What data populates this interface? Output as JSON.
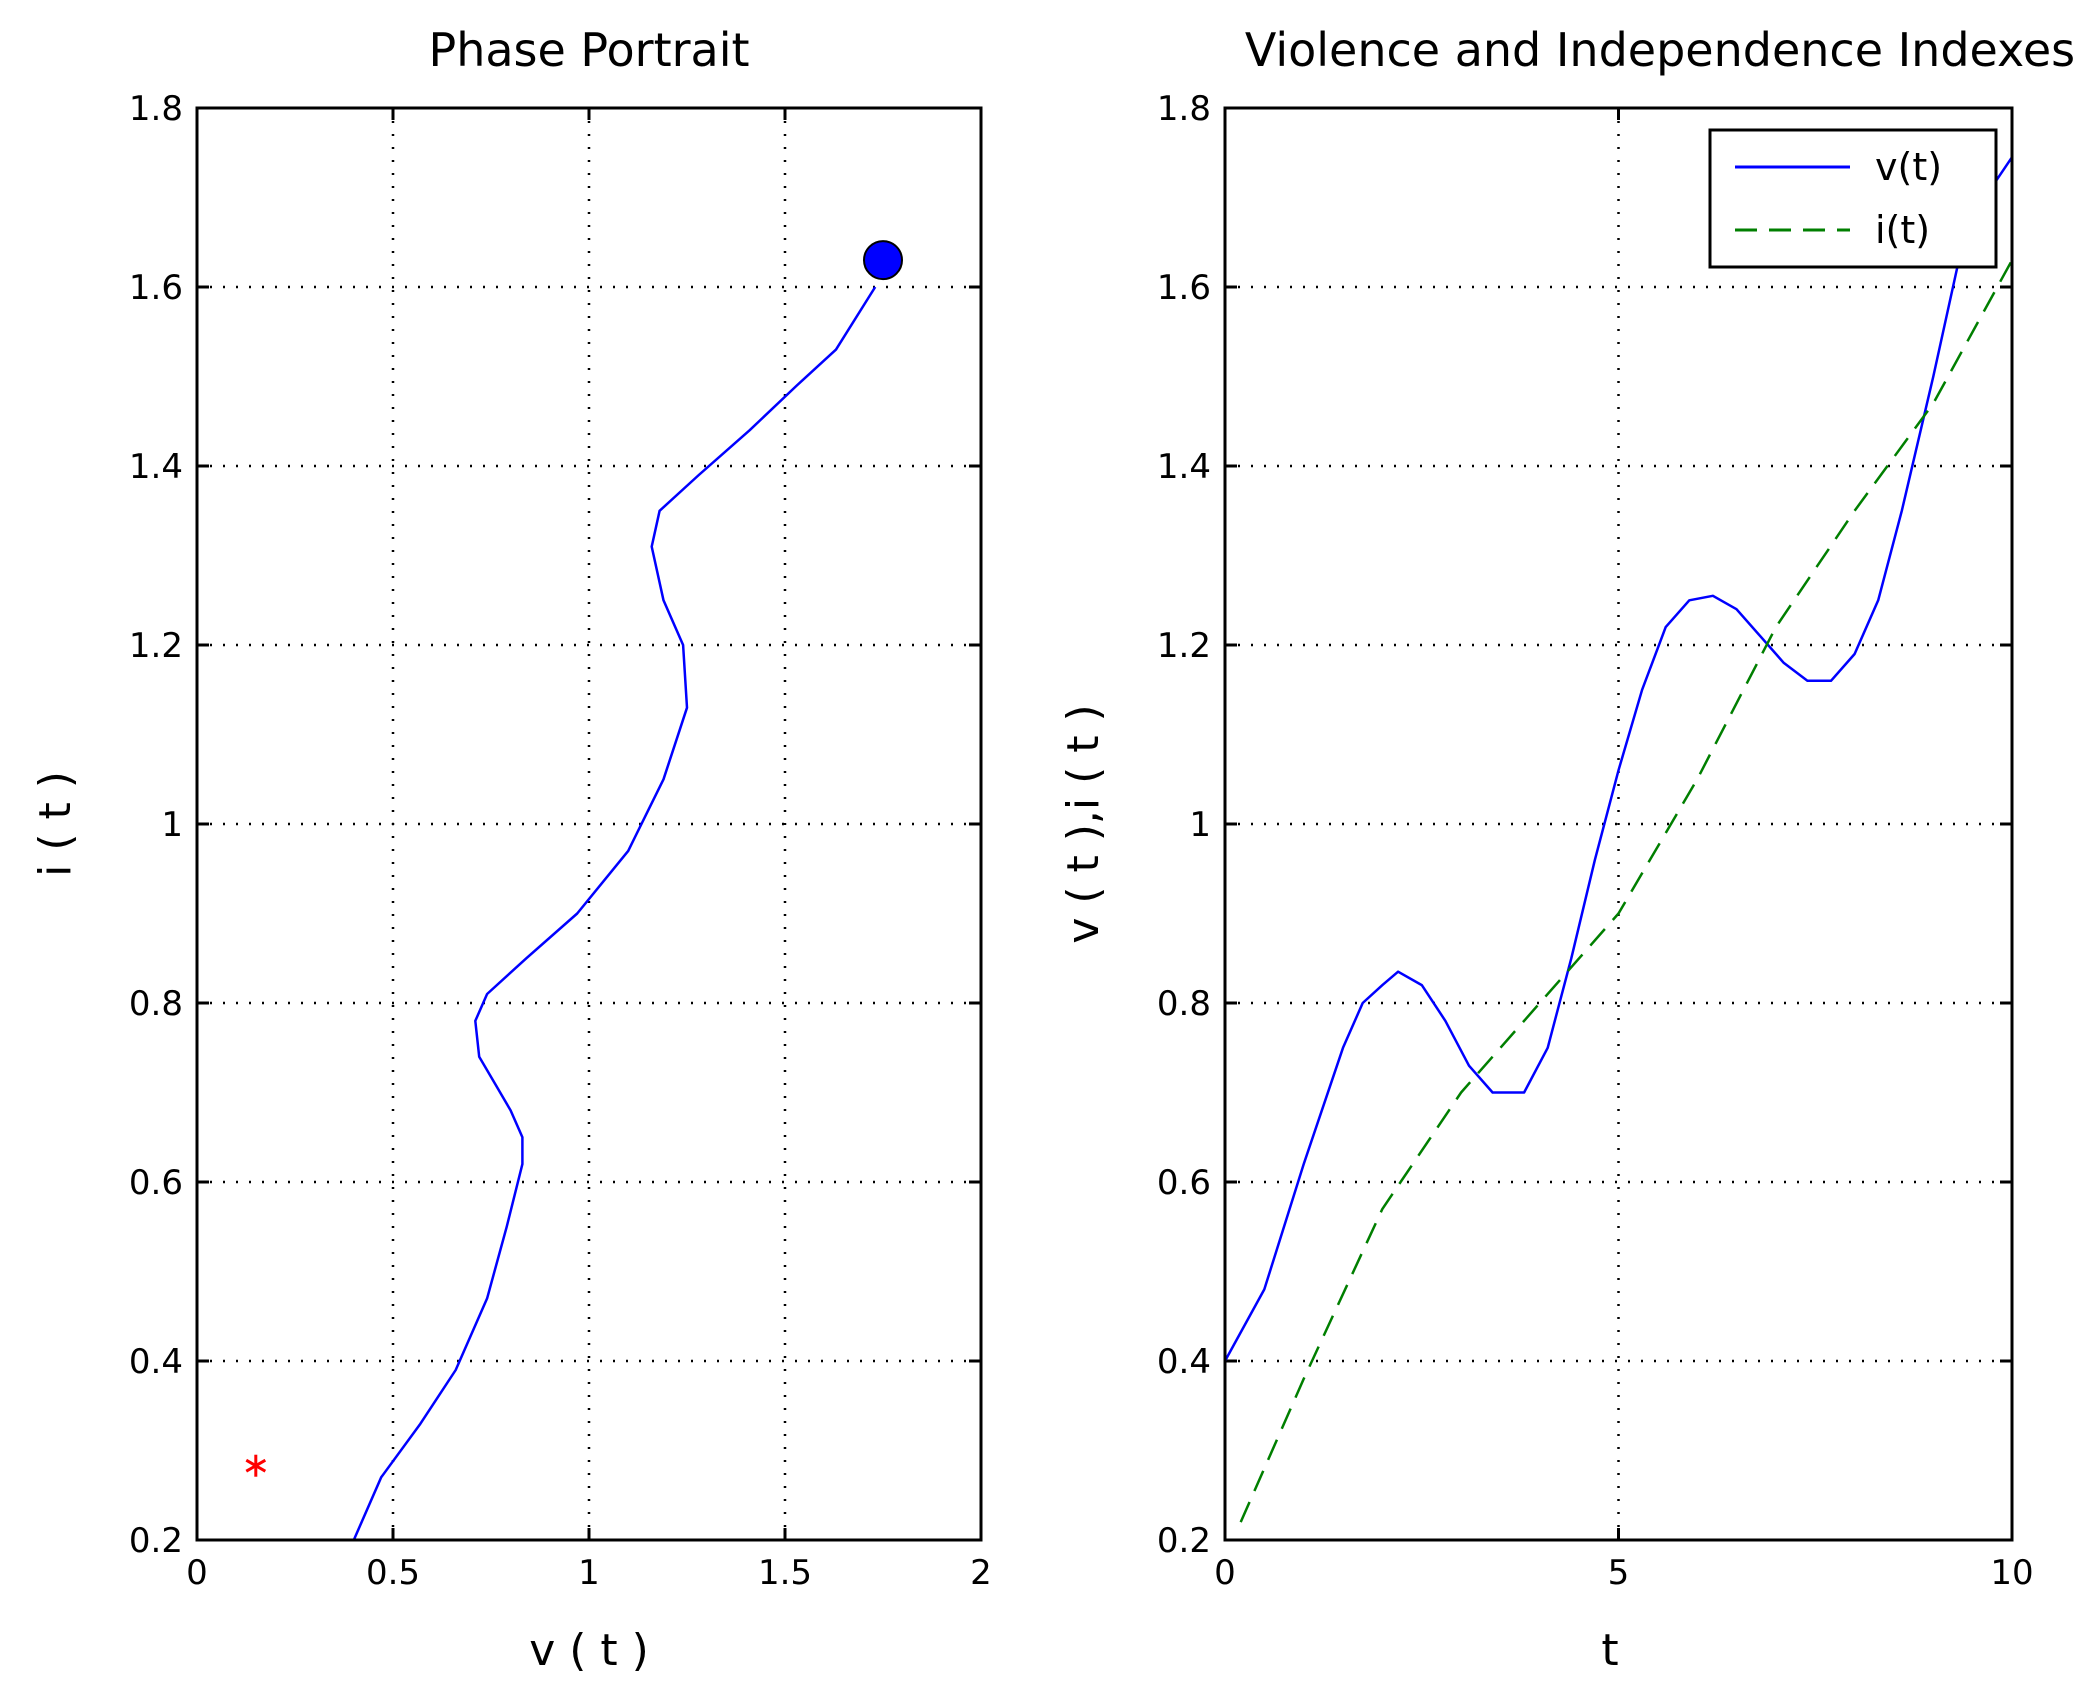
{
  "chart_data": [
    {
      "type": "line",
      "title": "Phase Portrait",
      "xlabel": "v ( t )",
      "ylabel": "i ( t )",
      "xlim": [
        0,
        2
      ],
      "ylim": [
        0.2,
        1.8
      ],
      "xticks": [
        0,
        0.5,
        1,
        1.5,
        2
      ],
      "xtick_labels": [
        "0",
        "0.5",
        "1",
        "1.5",
        "2"
      ],
      "yticks": [
        0.2,
        0.4,
        0.6,
        0.8,
        1,
        1.2,
        1.4,
        1.6,
        1.8
      ],
      "ytick_labels": [
        "0.2",
        "0.4",
        "0.6",
        "0.8",
        "1",
        "1.2",
        "1.4",
        "1.6",
        "1.8"
      ],
      "grid": true,
      "series": [
        {
          "color": "#0000ff",
          "x": [
            0.4,
            0.47,
            0.57,
            0.66,
            0.74,
            0.79,
            0.83,
            0.83,
            0.8,
            0.76,
            0.72,
            0.71,
            0.74,
            0.84,
            0.97,
            1.1,
            1.19,
            1.25,
            1.24,
            1.19,
            1.16,
            1.18,
            1.28,
            1.41,
            1.53,
            1.63,
            1.73
          ],
          "y": [
            0.2,
            0.27,
            0.33,
            0.39,
            0.47,
            0.55,
            0.62,
            0.65,
            0.68,
            0.71,
            0.74,
            0.78,
            0.81,
            0.85,
            0.9,
            0.97,
            1.05,
            1.13,
            1.2,
            1.25,
            1.31,
            1.35,
            1.39,
            1.44,
            1.49,
            1.53,
            1.6
          ]
        }
      ],
      "markers": [
        {
          "kind": "filled-circle",
          "color": "#0000ff",
          "x": 1.75,
          "y": 1.63
        },
        {
          "kind": "asterisk",
          "color": "#ff0000",
          "x": 0.15,
          "y": 0.283
        }
      ]
    },
    {
      "type": "line",
      "title": "Violence and Independence Indexes",
      "xlabel": "t",
      "ylabel": "v ( t ),i ( t )",
      "xlim": [
        0,
        10
      ],
      "ylim": [
        0.2,
        1.8
      ],
      "xticks": [
        0,
        5,
        10
      ],
      "xtick_labels": [
        "0",
        "5",
        "10"
      ],
      "yticks": [
        0.2,
        0.4,
        0.6,
        0.8,
        1,
        1.2,
        1.4,
        1.6,
        1.8
      ],
      "ytick_labels": [
        "0.2",
        "0.4",
        "0.6",
        "0.8",
        "1",
        "1.2",
        "1.4",
        "1.6",
        "1.8"
      ],
      "grid": true,
      "legend": {
        "position": "top-right",
        "entries": [
          "v(t)",
          "i(t)"
        ]
      },
      "series": [
        {
          "name": "v(t)",
          "color": "#0000ff",
          "style": "solid",
          "x": [
            0,
            0.5,
            1.0,
            1.5,
            1.75,
            2.0,
            2.2,
            2.5,
            2.8,
            3.1,
            3.4,
            3.6,
            3.8,
            4.1,
            4.4,
            4.7,
            5.0,
            5.3,
            5.6,
            5.9,
            6.2,
            6.5,
            6.8,
            7.1,
            7.4,
            7.7,
            8.0,
            8.3,
            8.6,
            9.0,
            9.3,
            9.5,
            10.0
          ],
          "y": [
            0.4,
            0.48,
            0.62,
            0.75,
            0.8,
            0.82,
            0.835,
            0.82,
            0.78,
            0.73,
            0.7,
            0.7,
            0.7,
            0.75,
            0.85,
            0.96,
            1.06,
            1.15,
            1.22,
            1.25,
            1.255,
            1.24,
            1.21,
            1.18,
            1.16,
            1.16,
            1.19,
            1.25,
            1.35,
            1.5,
            1.62,
            1.68,
            1.745
          ]
        },
        {
          "name": "i(t)",
          "color": "#007f00",
          "style": "dashed",
          "x": [
            0.2,
            1.0,
            2.0,
            3.0,
            4.0,
            5.0,
            6.0,
            7.0,
            8.0,
            9.0,
            10.0
          ],
          "y": [
            0.22,
            0.38,
            0.57,
            0.7,
            0.8,
            0.9,
            1.05,
            1.22,
            1.35,
            1.47,
            1.63
          ]
        }
      ]
    }
  ]
}
